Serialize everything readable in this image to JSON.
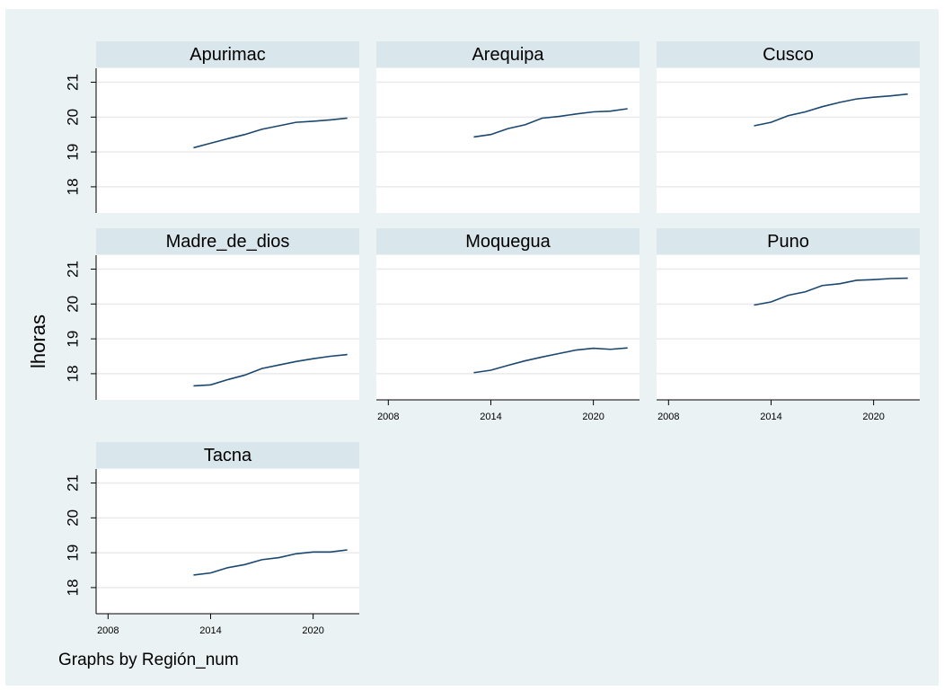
{
  "ytitle": "lhoras",
  "note": "Graphs by Región_num",
  "chart_data": [
    {
      "type": "line",
      "title": "Apurimac",
      "x": [
        2013,
        2014,
        2015,
        2016,
        2017,
        2018,
        2019,
        2020,
        2021,
        2022
      ],
      "values": [
        19.12,
        19.25,
        19.38,
        19.5,
        19.65,
        19.75,
        19.85,
        19.88,
        19.92,
        19.97
      ],
      "color": "#1a476f",
      "xlim": [
        2007.3,
        2022.7
      ],
      "ylim": [
        17.25,
        21.4
      ],
      "yticks": [
        18,
        19,
        20,
        21
      ],
      "grid": true
    },
    {
      "type": "line",
      "title": "Arequipa",
      "x": [
        2013,
        2014,
        2015,
        2016,
        2017,
        2018,
        2019,
        2020,
        2021,
        2022
      ],
      "values": [
        19.43,
        19.5,
        19.67,
        19.78,
        19.97,
        20.02,
        20.09,
        20.15,
        20.17,
        20.24
      ],
      "color": "#1a476f",
      "xlim": [
        2007.3,
        2022.7
      ],
      "ylim": [
        17.25,
        21.4
      ],
      "yticks": [
        18,
        19,
        20,
        21
      ],
      "grid": true
    },
    {
      "type": "line",
      "title": "Cusco",
      "x": [
        2013,
        2014,
        2015,
        2016,
        2017,
        2018,
        2019,
        2020,
        2021,
        2022
      ],
      "values": [
        19.75,
        19.85,
        20.04,
        20.15,
        20.3,
        20.42,
        20.52,
        20.57,
        20.61,
        20.66
      ],
      "color": "#1a476f",
      "xlim": [
        2007.3,
        2022.7
      ],
      "ylim": [
        17.25,
        21.4
      ],
      "yticks": [
        18,
        19,
        20,
        21
      ],
      "grid": true
    },
    {
      "type": "line",
      "title": "Madre_de_dios",
      "x": [
        2013,
        2014,
        2015,
        2016,
        2017,
        2018,
        2019,
        2020,
        2021,
        2022
      ],
      "values": [
        17.65,
        17.68,
        17.83,
        17.96,
        18.15,
        18.25,
        18.35,
        18.43,
        18.5,
        18.55
      ],
      "color": "#1a476f",
      "xlim": [
        2007.3,
        2022.7
      ],
      "ylim": [
        17.25,
        21.4
      ],
      "yticks": [
        18,
        19,
        20,
        21
      ],
      "grid": true
    },
    {
      "type": "line",
      "title": "Moquegua",
      "x": [
        2013,
        2014,
        2015,
        2016,
        2017,
        2018,
        2019,
        2020,
        2021,
        2022
      ],
      "values": [
        18.03,
        18.1,
        18.24,
        18.37,
        18.48,
        18.58,
        18.68,
        18.73,
        18.7,
        18.74
      ],
      "color": "#1a476f",
      "xlim": [
        2007.3,
        2022.7
      ],
      "ylim": [
        17.25,
        21.4
      ],
      "xticks": [
        2008,
        2014,
        2020
      ],
      "yticks": [
        18,
        19,
        20,
        21
      ],
      "grid": true
    },
    {
      "type": "line",
      "title": "Puno",
      "x": [
        2013,
        2014,
        2015,
        2016,
        2017,
        2018,
        2019,
        2020,
        2021,
        2022
      ],
      "values": [
        19.97,
        20.06,
        20.25,
        20.35,
        20.53,
        20.58,
        20.68,
        20.7,
        20.73,
        20.74
      ],
      "color": "#1a476f",
      "xlim": [
        2007.3,
        2022.7
      ],
      "ylim": [
        17.25,
        21.4
      ],
      "xticks": [
        2008,
        2014,
        2020
      ],
      "yticks": [
        18,
        19,
        20,
        21
      ],
      "grid": true
    },
    {
      "type": "line",
      "title": "Tacna",
      "x": [
        2013,
        2014,
        2015,
        2016,
        2017,
        2018,
        2019,
        2020,
        2021,
        2022
      ],
      "values": [
        18.36,
        18.42,
        18.57,
        18.66,
        18.8,
        18.86,
        18.97,
        19.02,
        19.02,
        19.08
      ],
      "color": "#1a476f",
      "xlim": [
        2007.3,
        2022.7
      ],
      "ylim": [
        17.25,
        21.4
      ],
      "xticks": [
        2008,
        2014,
        2020
      ],
      "yticks": [
        18,
        19,
        20,
        21
      ],
      "grid": true
    }
  ]
}
